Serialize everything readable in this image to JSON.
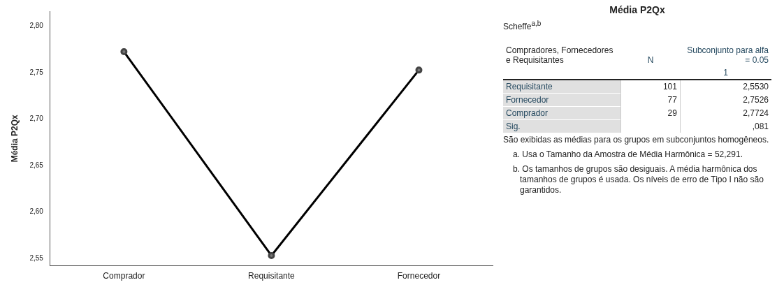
{
  "chart_data": [
    {
      "type": "line",
      "ylabel": "Média P2Qx",
      "categories": [
        "Comprador",
        "Requisitante",
        "Fornecedor"
      ],
      "series": [
        {
          "color": "#000000",
          "values": [
            2.7724,
            2.553,
            2.7526
          ]
        }
      ],
      "ylim": [
        2.542,
        2.816
      ],
      "yticks": [
        {
          "value": 2.55,
          "label": "2,55"
        },
        {
          "value": 2.6,
          "label": "2,60"
        },
        {
          "value": 2.65,
          "label": "2,65"
        },
        {
          "value": 2.7,
          "label": "2,70"
        },
        {
          "value": 2.75,
          "label": "2,75"
        },
        {
          "value": 2.8,
          "label": "2,80"
        }
      ],
      "grid": false,
      "legend": false,
      "marker": "circle",
      "line_style": "solid"
    },
    {
      "type": "other",
      "title": "Média P2Qx",
      "subtitle": "Scheffe$^{a,b}$",
      "xlabel": "Compradores, Fornecedores e Requisitantes",
      "categories": [
        "Requisitante",
        "Fornecedor",
        "Comprador",
        "Sig."
      ],
      "annotations": [
        "N",
        "Subconjunto para alfa = 0.05",
        "1",
        "101",
        "2,5530",
        "77",
        "2,7526",
        "29",
        "2,7724",
        ",081",
        "São exibidas as médias para os grupos em subconjuntos homogêneos.",
        "a. Usa o Tamanho da Amostra de Média Harmônica = 52,291.",
        "b. Os tamanhos de grupos são desiguais. A média harmônica dos tamanhos de grupos é usada. Os níveis de erro de Tipo I não são garantidos."
      ]
    }
  ]
}
